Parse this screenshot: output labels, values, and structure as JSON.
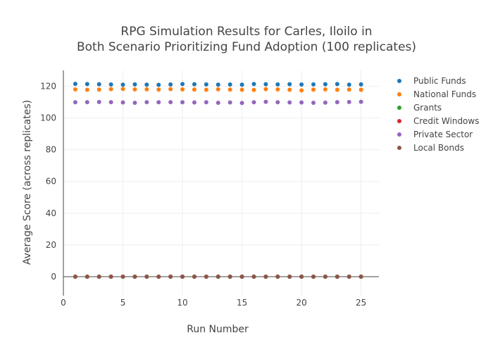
{
  "chart_data": {
    "type": "scatter",
    "title_lines": [
      "RPG Simulation Results for Carles, Iloilo in",
      "Both Scenario Prioritizing Fund Adoption (100 replicates)"
    ],
    "xlabel": "Run Number",
    "ylabel": "Average Score (across replicates)",
    "xlim": [
      0,
      26.5
    ],
    "ylim": [
      -12,
      130
    ],
    "x_ticks": [
      0,
      5,
      10,
      15,
      20,
      25
    ],
    "y_ticks": [
      0,
      20,
      40,
      60,
      80,
      100,
      120
    ],
    "x": [
      1,
      2,
      3,
      4,
      5,
      6,
      7,
      8,
      9,
      10,
      11,
      12,
      13,
      14,
      15,
      16,
      17,
      18,
      19,
      20,
      21,
      22,
      23,
      24,
      25
    ],
    "grid": true,
    "legend_position": "top-right",
    "series": [
      {
        "name": "Public Funds",
        "color": "#1f77b4",
        "values": [
          121.5,
          121.4,
          121.3,
          121.1,
          121.0,
          121.2,
          121.0,
          120.9,
          121.1,
          121.4,
          121.3,
          121.2,
          121.0,
          121.1,
          121.0,
          121.4,
          121.3,
          121.2,
          121.3,
          121.1,
          121.2,
          121.3,
          121.4,
          121.0,
          121.2
        ]
      },
      {
        "name": "National Funds",
        "color": "#ff7f0e",
        "values": [
          118.0,
          117.8,
          117.9,
          118.2,
          118.3,
          118.0,
          118.1,
          117.9,
          118.2,
          118.0,
          117.9,
          117.8,
          118.1,
          117.9,
          117.8,
          117.7,
          118.2,
          118.0,
          117.8,
          117.4,
          117.9,
          118.0,
          117.8,
          117.9,
          117.8
        ]
      },
      {
        "name": "Grants",
        "color": "#2ca02c",
        "values": [
          0,
          0,
          0,
          0,
          0,
          0,
          0,
          0,
          0,
          0,
          0,
          0,
          0,
          0,
          0,
          0,
          0,
          0,
          0,
          0,
          0,
          0,
          0,
          0,
          0
        ]
      },
      {
        "name": "Credit Windows",
        "color": "#d62728",
        "values": [
          0,
          0,
          0,
          0,
          0,
          0,
          0,
          0,
          0,
          0,
          0,
          0,
          0,
          0,
          0,
          0,
          0,
          0,
          0,
          0,
          0,
          0,
          0,
          0,
          0
        ]
      },
      {
        "name": "Private Sector",
        "color": "#9467bd",
        "values": [
          109.9,
          110.0,
          110.1,
          110.0,
          109.8,
          109.6,
          110.0,
          109.9,
          110.0,
          109.9,
          109.8,
          109.9,
          109.6,
          109.8,
          109.5,
          109.9,
          110.2,
          109.9,
          109.8,
          109.8,
          109.6,
          109.7,
          110.0,
          110.1,
          110.2
        ]
      },
      {
        "name": "Local Bonds",
        "color": "#8c564b",
        "values": [
          0,
          0,
          0,
          0,
          0,
          0,
          0,
          0,
          0,
          0,
          0,
          0,
          0,
          0,
          0,
          0,
          0,
          0,
          0,
          0,
          0,
          0,
          0,
          0,
          0
        ]
      }
    ]
  }
}
